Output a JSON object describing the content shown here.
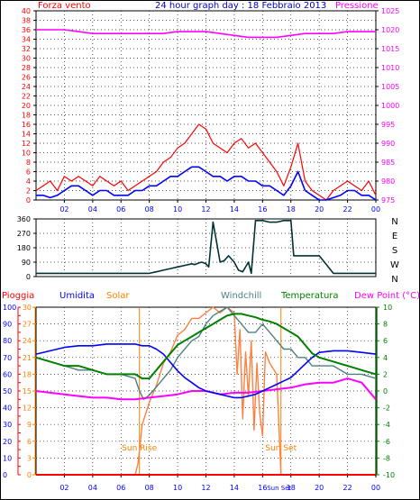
{
  "title": "24 hour graph day : 18 Febbraio 2013",
  "colors": {
    "background": "#ffffff",
    "frame": "#000000",
    "grid": "#1a1a1a",
    "wind_avg": "#ff0000",
    "wind_gust_avg": "#0000ff",
    "pressure": "#ff00ff",
    "direction": "#003333",
    "rain": "#ff0000",
    "humidity": "#0000ff",
    "solar": "#ff8040",
    "windchill": "#4c8080",
    "temperature": "#008000",
    "dewpoint": "#ff00ff",
    "sun_line": "#ff8000",
    "left_axis": "#ff0000",
    "hum_axis": "#0000ff",
    "solar_axis": "#ff8000",
    "temp_axis": "#008000",
    "x_axis_text": "#0000ff"
  },
  "x_ticks": [
    "02",
    "04",
    "06",
    "08",
    "10",
    "12",
    "14",
    "16",
    "18",
    "20",
    "22",
    "00"
  ],
  "chart_data": [
    {
      "type": "line",
      "id": "wind",
      "y_label_left": "Forza vento",
      "y_label_right": "Pressione",
      "ylim": [
        0,
        40
      ],
      "y_ticks": [
        0,
        2,
        4,
        6,
        8,
        10,
        12,
        14,
        16,
        18,
        20,
        22,
        24,
        26,
        28,
        30,
        32,
        34,
        36,
        38,
        40
      ],
      "pressure_ylim": [
        975,
        1025
      ],
      "pressure_ticks": [
        975,
        980,
        985,
        990,
        995,
        1000,
        1005,
        1010,
        1015,
        1020,
        1025
      ],
      "series": [
        {
          "key": "gust",
          "x": [
            0,
            0.5,
            1,
            1.5,
            2,
            2.5,
            3,
            3.5,
            4,
            4.5,
            5,
            5.5,
            6,
            6.5,
            7,
            7.5,
            8,
            8.5,
            9,
            9.5,
            10,
            10.5,
            11,
            11.5,
            12,
            12.5,
            13,
            13.5,
            14,
            14.5,
            15,
            15.5,
            16,
            16.5,
            17,
            17.5,
            18,
            18.5,
            19,
            19.5,
            20,
            20.5,
            21,
            21.5,
            22,
            22.5,
            23,
            23.5,
            24
          ],
          "values": [
            2,
            3,
            4,
            2,
            5,
            4,
            5,
            4,
            3,
            5,
            4,
            3,
            4,
            2,
            3,
            4,
            5,
            6,
            8,
            9,
            11,
            12,
            14,
            16,
            15,
            12,
            11,
            10,
            12,
            13,
            11,
            12,
            10,
            8,
            6,
            3,
            7,
            12,
            4,
            2,
            1,
            0,
            2,
            3,
            4,
            3,
            2,
            4,
            1
          ]
        },
        {
          "key": "average",
          "x": [
            0,
            0.5,
            1,
            1.5,
            2,
            2.5,
            3,
            3.5,
            4,
            4.5,
            5,
            5.5,
            6,
            6.5,
            7,
            7.5,
            8,
            8.5,
            9,
            9.5,
            10,
            10.5,
            11,
            11.5,
            12,
            12.5,
            13,
            13.5,
            14,
            14.5,
            15,
            15.5,
            16,
            16.5,
            17,
            17.5,
            18,
            18.5,
            19,
            19.5,
            20,
            20.5,
            21,
            21.5,
            22,
            22.5,
            23,
            23.5,
            24
          ],
          "values": [
            1,
            1,
            0.5,
            1,
            2,
            3,
            3,
            2,
            1,
            2,
            2,
            1,
            1,
            1,
            2,
            2,
            3,
            3,
            4,
            5,
            5,
            6,
            7,
            7,
            6,
            5,
            5,
            4,
            5,
            5,
            4,
            4,
            3,
            3,
            2,
            1,
            3,
            6,
            2,
            1,
            0,
            0,
            0.5,
            1,
            2,
            2,
            1,
            1,
            0
          ]
        },
        {
          "key": "pressure",
          "x": [
            0,
            1,
            2,
            3,
            4,
            5,
            6,
            7,
            8,
            9,
            10,
            11,
            12,
            13,
            14,
            15,
            16,
            17,
            18,
            19,
            20,
            21,
            22,
            23,
            24
          ],
          "values": [
            1020,
            1020,
            1020,
            1019.5,
            1019,
            1019,
            1019,
            1019,
            1019,
            1019,
            1019.5,
            1019.5,
            1019.5,
            1019,
            1018.5,
            1018,
            1018,
            1018,
            1018.5,
            1019,
            1019,
            1019,
            1019.5,
            1019.5,
            1019.5
          ]
        }
      ]
    },
    {
      "type": "line",
      "id": "direction",
      "ylim": [
        0,
        360
      ],
      "y_ticks": [
        0,
        90,
        180,
        270,
        360
      ],
      "compass": [
        "N",
        "W",
        "S",
        "E",
        "N"
      ],
      "series": [
        {
          "key": "direction",
          "x": [
            0,
            1,
            2,
            3,
            4,
            5,
            6,
            7,
            8,
            8.5,
            9,
            9.5,
            10,
            10.5,
            11,
            11.2,
            11.5,
            11.7,
            12,
            12.2,
            12.5,
            13,
            13.3,
            13.6,
            14,
            14.3,
            14.6,
            15,
            15.2,
            15.5,
            16,
            16.5,
            17,
            17.5,
            18,
            18.2,
            19,
            19.5,
            20,
            21,
            22,
            23,
            24
          ],
          "values": [
            20,
            20,
            20,
            20,
            20,
            20,
            20,
            20,
            20,
            30,
            40,
            50,
            60,
            70,
            80,
            75,
            85,
            90,
            80,
            60,
            340,
            90,
            100,
            130,
            90,
            40,
            30,
            90,
            20,
            350,
            350,
            340,
            340,
            350,
            350,
            130,
            130,
            130,
            130,
            20,
            20,
            20,
            20
          ]
        }
      ]
    },
    {
      "type": "line",
      "id": "climate",
      "y_label_rain": "Pioggia",
      "y_label_humidity": "Umidita",
      "y_label_solar": "Solar",
      "y_label_windchill": "Windchill",
      "y_label_temperature": "Temperatura",
      "y_label_dewpoint": "Dew Point (°C)",
      "rain_ylim": [
        0,
        100
      ],
      "rain_ticks": [
        0,
        5,
        10,
        15,
        20,
        25,
        30,
        35,
        40,
        45,
        50,
        55,
        60,
        65,
        70,
        75,
        80,
        85,
        90,
        95,
        100
      ],
      "humidity_ylim": [
        0,
        100
      ],
      "humidity_ticks": [
        0,
        10,
        20,
        30,
        40,
        50,
        60,
        70,
        80,
        90,
        100
      ],
      "solar_ylim": [
        0,
        30
      ],
      "solar_ticks": [
        0,
        3,
        6,
        9,
        12,
        15,
        18,
        21,
        24,
        27,
        30
      ],
      "temp_ylim": [
        -10,
        10
      ],
      "temp_ticks": [
        -10,
        -8,
        -6,
        -4,
        -2,
        0,
        2,
        4,
        6,
        8,
        10
      ],
      "sunrise_x": 7.3,
      "sunset_x": 17.3,
      "sunrise_label": "Sun Rise",
      "sunset_label": "Sun Set",
      "series": [
        {
          "key": "rain",
          "x": [
            0,
            24
          ],
          "values": [
            0,
            0
          ]
        },
        {
          "key": "humidity",
          "x": [
            0,
            1,
            2,
            3,
            4,
            5,
            6,
            7,
            7.5,
            8,
            8.5,
            9,
            9.5,
            10,
            10.5,
            11,
            11.5,
            12,
            12.5,
            13,
            13.5,
            14,
            14.5,
            15,
            15.5,
            16,
            16.5,
            17,
            17.5,
            18,
            18.5,
            19,
            19.5,
            20,
            21,
            22,
            23,
            24
          ],
          "values": [
            72,
            74,
            76,
            77,
            77,
            78,
            78,
            78,
            77,
            77,
            75,
            72,
            67,
            62,
            58,
            55,
            52,
            50,
            49,
            48,
            47,
            46,
            46,
            47,
            48,
            50,
            52,
            54,
            56,
            58,
            62,
            66,
            70,
            73,
            74,
            74,
            73,
            72
          ]
        },
        {
          "key": "solar",
          "x": [
            0,
            7,
            7.2,
            7.5,
            8,
            8.5,
            9,
            9.5,
            10,
            10.5,
            11,
            11.5,
            12,
            12.5,
            13,
            13.5,
            14,
            14.2,
            14.4,
            14.6,
            14.8,
            15,
            15.2,
            15.4,
            15.6,
            15.8,
            16,
            16.2,
            16.5,
            17,
            17.3,
            24
          ],
          "values": [
            0,
            0,
            2,
            9,
            13,
            16,
            20,
            22,
            25,
            26,
            28,
            28,
            29,
            30,
            29,
            30,
            29,
            18,
            26,
            10,
            22,
            14,
            24,
            8,
            20,
            11,
            7,
            22,
            20,
            18,
            0,
            0
          ]
        },
        {
          "key": "windchill",
          "x": [
            0,
            1,
            2,
            3,
            4,
            5,
            6,
            7,
            7.3,
            7.6,
            8,
            8.5,
            9,
            9.5,
            10,
            10.5,
            11,
            11.5,
            12,
            12.5,
            13,
            13.5,
            14,
            14.5,
            15,
            15.5,
            16,
            16.5,
            17,
            17.5,
            18,
            18.5,
            19,
            19.5,
            20,
            21,
            22,
            23,
            24
          ],
          "values": [
            4,
            3.5,
            3,
            2.5,
            2.5,
            2,
            2,
            1.5,
            0,
            -1,
            -0.5,
            0.5,
            1.5,
            2.5,
            4,
            5,
            6,
            6.5,
            8,
            9,
            9.5,
            10,
            9,
            8,
            7,
            7,
            8,
            7,
            6,
            5,
            5,
            4,
            4,
            3,
            3,
            3,
            2,
            2,
            1.5
          ]
        },
        {
          "key": "temperature",
          "x": [
            0,
            1,
            2,
            3,
            4,
            5,
            6,
            7,
            7.5,
            8,
            8.5,
            9,
            9.5,
            10,
            10.5,
            11,
            11.5,
            12,
            12.5,
            13,
            13.5,
            14,
            14.5,
            15,
            15.5,
            16,
            16.5,
            17,
            17.5,
            18,
            18.5,
            19,
            19.5,
            20,
            21,
            22,
            23,
            24
          ],
          "values": [
            4,
            3.5,
            3,
            3,
            2.5,
            2,
            2,
            2,
            1.5,
            1.5,
            2.5,
            3.5,
            4.5,
            5.5,
            6,
            6.5,
            7,
            7.5,
            8,
            8.5,
            9,
            9.2,
            9.2,
            9,
            8.8,
            8.5,
            8.3,
            8,
            7.5,
            7,
            6.5,
            5.5,
            4.5,
            4,
            3.5,
            3,
            2.5,
            2
          ]
        },
        {
          "key": "dewpoint",
          "x": [
            0,
            1,
            2,
            3,
            4,
            5,
            6,
            7,
            8,
            9,
            10,
            11,
            12,
            13,
            14,
            15,
            16,
            17,
            18,
            19,
            20,
            21,
            22,
            23,
            24
          ],
          "values": [
            0,
            -0.2,
            -0.4,
            -0.6,
            -0.8,
            -0.8,
            -1,
            -1,
            -0.8,
            -0.6,
            -0.4,
            0,
            0,
            -0.4,
            -0.2,
            -0.2,
            0,
            0.2,
            0.4,
            0.8,
            1,
            1,
            1.5,
            1,
            -1
          ]
        }
      ]
    }
  ]
}
